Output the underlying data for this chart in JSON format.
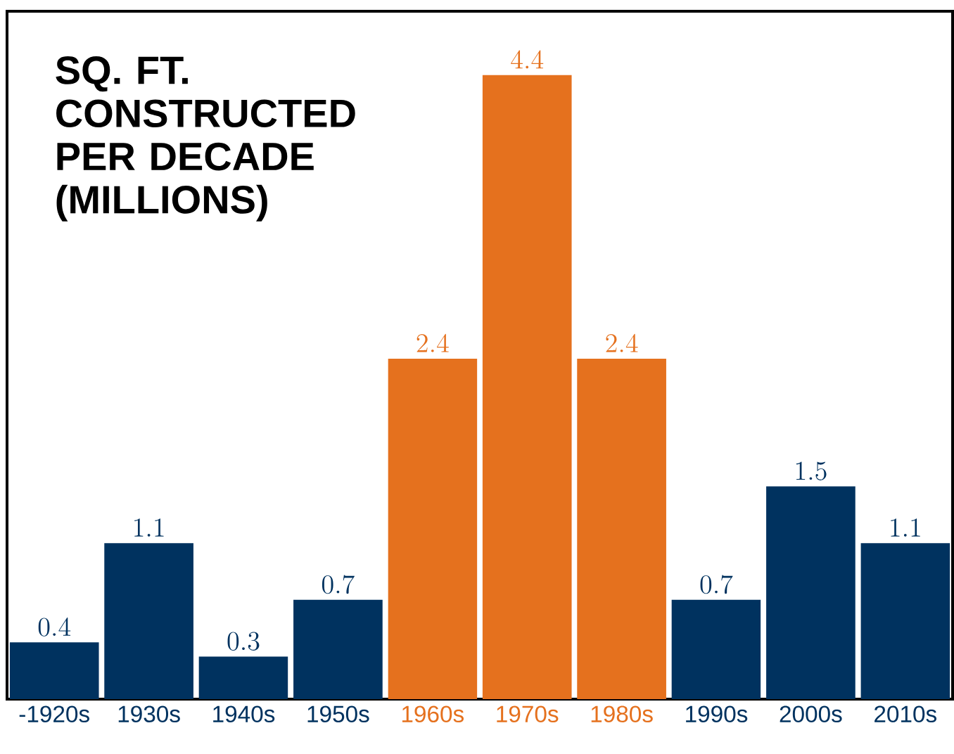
{
  "chart_data": {
    "type": "bar",
    "title": "SQ. FT. CONSTRUCTED PER DECADE (MILLIONS)",
    "categories": [
      "-1920s",
      "1930s",
      "1940s",
      "1950s",
      "1960s",
      "1970s",
      "1980s",
      "1990s",
      "2000s",
      "2010s"
    ],
    "values": [
      0.4,
      1.1,
      0.3,
      0.7,
      2.4,
      4.4,
      2.4,
      0.7,
      1.5,
      1.1
    ],
    "colors": [
      "#00325f",
      "#00325f",
      "#00325f",
      "#00325f",
      "#e5711e",
      "#e5711e",
      "#e5711e",
      "#00325f",
      "#00325f",
      "#00325f"
    ],
    "ylim": [
      0,
      4.85
    ],
    "tick_labels": "x",
    "data_labels": true
  }
}
